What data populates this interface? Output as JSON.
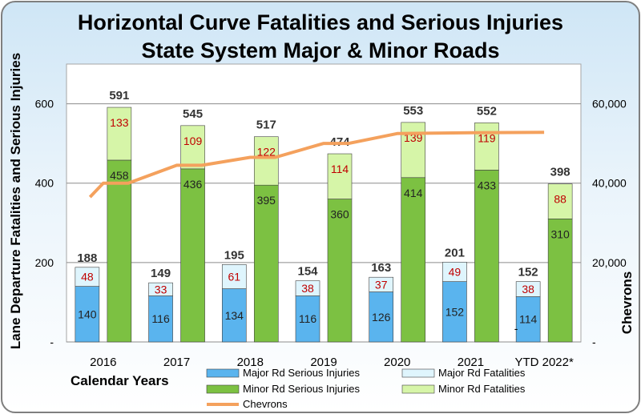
{
  "chart_data": {
    "type": "bar",
    "title_lines": [
      "Horizontal Curve Fatalities and Serious Injuries",
      "State System Major & Minor Roads"
    ],
    "xlabel": "Calendar Years",
    "ylabel": "Lane Departure Fatalities and Serious Injuries",
    "y2label": "Chevrons",
    "ylim": [
      0,
      700
    ],
    "y2lim": [
      0,
      70000
    ],
    "y_ticks": [
      "-",
      "200",
      "400",
      "600"
    ],
    "y2_ticks": [
      "-",
      "20,000",
      "40,000",
      "60,000"
    ],
    "categories": [
      "2016",
      "2017",
      "2018",
      "2019",
      "2020",
      "2021",
      "YTD 2022*"
    ],
    "major_totals": [
      "188",
      "149",
      "195",
      "154",
      "163",
      "201",
      "152"
    ],
    "minor_totals": [
      "591",
      "545",
      "517",
      "474",
      "553",
      "552",
      "398"
    ],
    "series": [
      {
        "name": "Major Rd Serious Injuries",
        "color": "#5ab4ee",
        "values": [
          140,
          116,
          134,
          116,
          126,
          152,
          114
        ]
      },
      {
        "name": "Major Rd Fatalities",
        "color": "#dff5fd",
        "values": [
          48,
          33,
          61,
          38,
          37,
          49,
          38
        ]
      },
      {
        "name": "Minor Rd Serious Injuries",
        "color": "#7cc142",
        "values": [
          458,
          436,
          395,
          360,
          414,
          433,
          310
        ]
      },
      {
        "name": "Minor Rd Fatalities",
        "color": "#d6f5a8",
        "values": [
          133,
          109,
          122,
          114,
          139,
          119,
          88
        ]
      },
      {
        "name": "Chevrons",
        "color": "#f4a15d",
        "type": "line",
        "points": [
          {
            "x": "2016",
            "y": 36500
          },
          {
            "x": "2016",
            "y": 40000
          },
          {
            "x": "2016-2017",
            "y": 40000
          },
          {
            "x": "2017",
            "y": 44500
          },
          {
            "x": "2017-2018",
            "y": 44500
          },
          {
            "x": "2018",
            "y": 46500
          },
          {
            "x": "2018-2019",
            "y": 46500
          },
          {
            "x": "2019",
            "y": 50000
          },
          {
            "x": "2019-2020",
            "y": 50000
          },
          {
            "x": "2020",
            "y": 52500
          },
          {
            "x": "2021",
            "y": 52700
          },
          {
            "x": "YTD 2022*",
            "y": 52800
          }
        ]
      }
    ],
    "extra_labels": [
      {
        "text": "-",
        "category": "YTD 2022*"
      }
    ],
    "grid": true,
    "legend_position": "bottom"
  }
}
